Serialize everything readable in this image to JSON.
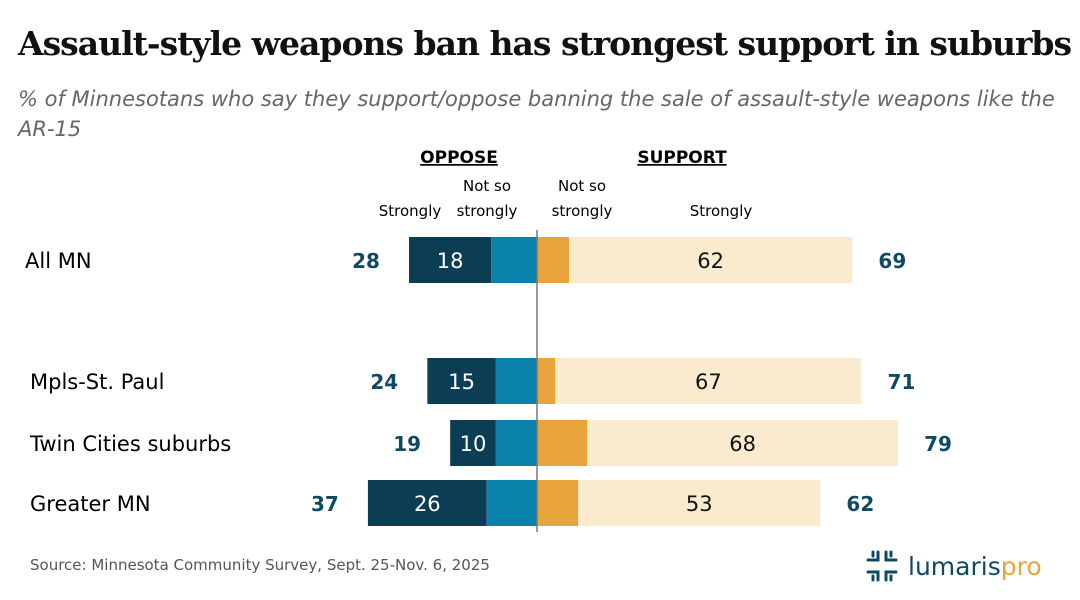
{
  "title": "Assault-style weapons ban has strongest support in suburbs",
  "subtitle": "% of Minnesotans who say they support/oppose banning the sale of assault-style weapons like the AR-15",
  "source": "Source: Minnesota Community Survey, Sept. 25-Nov. 6, 2025",
  "logo": {
    "text_main": "lumaris",
    "text_accent": "pro"
  },
  "chart_data": {
    "type": "bar",
    "orientation": "horizontal-diverging",
    "group_labels": {
      "oppose": "OPPOSE",
      "support": "SUPPORT"
    },
    "column_labels": {
      "oppose_strongly": "Strongly",
      "oppose_not_so": [
        "Not so",
        "strongly"
      ],
      "support_not_so": [
        "Not so",
        "strongly"
      ],
      "support_strongly": "Strongly"
    },
    "categories": [
      "All MN",
      "Mpls-St. Paul",
      "Twin Cities suburbs",
      "Greater MN"
    ],
    "series": [
      {
        "name": "Oppose strongly",
        "values": [
          18,
          15,
          10,
          26
        ],
        "color": "#0b3d55"
      },
      {
        "name": "Oppose not so strongly",
        "values": [
          10,
          9,
          9,
          11
        ],
        "color": "#0a82ab"
      },
      {
        "name": "Support not so strongly",
        "values": [
          7,
          4,
          11,
          9
        ],
        "color": "#e8a33c"
      },
      {
        "name": "Support strongly",
        "values": [
          62,
          67,
          68,
          53
        ],
        "color": "#faebcf"
      }
    ],
    "oppose_totals": [
      28,
      24,
      19,
      37
    ],
    "support_totals": [
      69,
      71,
      79,
      62
    ],
    "total_label_color": "#0f4a63",
    "grid": false,
    "legend": "none"
  }
}
